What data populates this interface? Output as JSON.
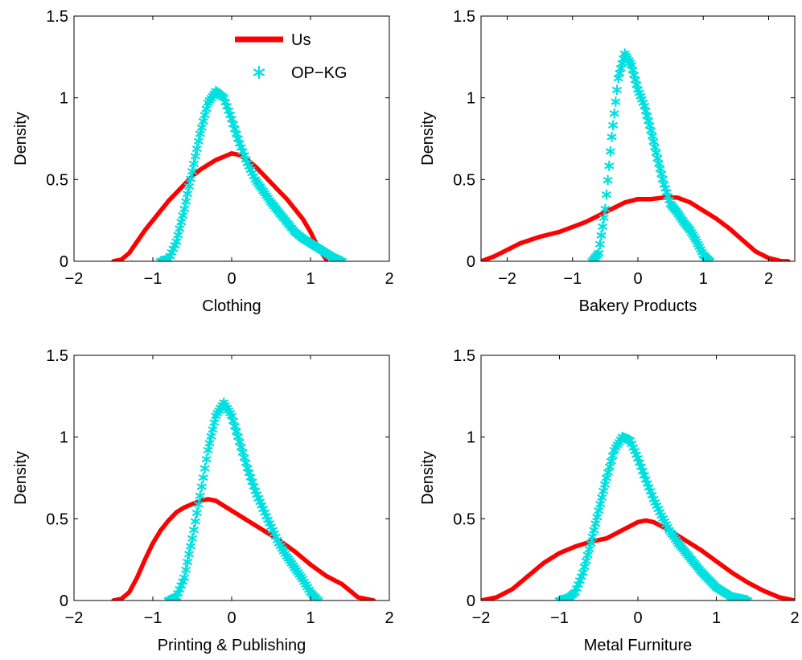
{
  "chart_data": [
    {
      "type": "line",
      "xlabel": "Clothing",
      "ylabel": "Density",
      "xlim": [
        -2,
        2
      ],
      "ylim": [
        0,
        1.5
      ],
      "xticks": [
        "−2",
        "−1",
        "0",
        "1",
        "2"
      ],
      "yticks": [
        "0",
        "0.5",
        "1",
        "1.5"
      ],
      "legend": {
        "show": true,
        "position": "top-right"
      },
      "series": [
        {
          "name": "Us",
          "color": "#ff0000",
          "style": "line",
          "x": [
            -1.5,
            -1.4,
            -1.3,
            -1.2,
            -1.1,
            -1.0,
            -0.9,
            -0.8,
            -0.7,
            -0.6,
            -0.5,
            -0.4,
            -0.3,
            -0.2,
            -0.1,
            0.0,
            0.1,
            0.2,
            0.3,
            0.4,
            0.5,
            0.6,
            0.7,
            0.8,
            0.9,
            1.0,
            1.1,
            1.2
          ],
          "y": [
            0,
            0.01,
            0.05,
            0.12,
            0.19,
            0.25,
            0.31,
            0.37,
            0.42,
            0.47,
            0.52,
            0.56,
            0.59,
            0.62,
            0.64,
            0.66,
            0.65,
            0.62,
            0.58,
            0.53,
            0.48,
            0.43,
            0.38,
            0.32,
            0.26,
            0.18,
            0.08,
            0.01
          ]
        },
        {
          "name": "OP−KG",
          "color": "#00e0e0",
          "style": "markers",
          "x": [
            -0.9,
            -0.8,
            -0.7,
            -0.6,
            -0.5,
            -0.4,
            -0.3,
            -0.2,
            -0.1,
            0.0,
            0.1,
            0.2,
            0.3,
            0.4,
            0.5,
            0.6,
            0.7,
            0.8,
            0.9,
            1.0,
            1.1,
            1.2,
            1.3,
            1.4
          ],
          "y": [
            0,
            0.01,
            0.12,
            0.32,
            0.55,
            0.78,
            0.97,
            1.04,
            1.0,
            0.87,
            0.72,
            0.6,
            0.5,
            0.43,
            0.36,
            0.3,
            0.24,
            0.18,
            0.14,
            0.11,
            0.08,
            0.05,
            0.02,
            0.0
          ]
        }
      ]
    },
    {
      "type": "line",
      "xlabel": "Bakery Products",
      "ylabel": "Density",
      "xlim": [
        -2.4,
        2.4
      ],
      "ylim": [
        0,
        1.5
      ],
      "xticks": [
        "−2",
        "−1",
        "0",
        "1",
        "2"
      ],
      "yticks": [
        "0",
        "0.5",
        "1",
        "1.5"
      ],
      "legend": {
        "show": false
      },
      "series": [
        {
          "name": "Us",
          "color": "#ff0000",
          "style": "line",
          "x": [
            -2.4,
            -2.2,
            -2.0,
            -1.8,
            -1.5,
            -1.2,
            -1.0,
            -0.8,
            -0.6,
            -0.4,
            -0.2,
            0.0,
            0.2,
            0.4,
            0.6,
            0.8,
            1.0,
            1.2,
            1.4,
            1.6,
            1.8,
            2.0,
            2.2,
            2.3
          ],
          "y": [
            0.0,
            0.03,
            0.07,
            0.11,
            0.15,
            0.18,
            0.21,
            0.24,
            0.28,
            0.32,
            0.36,
            0.38,
            0.38,
            0.39,
            0.39,
            0.36,
            0.31,
            0.26,
            0.2,
            0.13,
            0.06,
            0.02,
            0.0,
            0.0
          ]
        },
        {
          "name": "OP−KG",
          "color": "#00e0e0",
          "style": "markers",
          "x": [
            -0.7,
            -0.6,
            -0.5,
            -0.4,
            -0.3,
            -0.2,
            -0.1,
            0.0,
            0.1,
            0.2,
            0.3,
            0.4,
            0.5,
            0.6,
            0.7,
            0.8,
            0.9,
            1.0,
            1.1
          ],
          "y": [
            0,
            0.05,
            0.32,
            0.76,
            1.12,
            1.27,
            1.2,
            1.05,
            0.95,
            0.8,
            0.63,
            0.47,
            0.35,
            0.3,
            0.24,
            0.19,
            0.12,
            0.04,
            0.0
          ]
        }
      ]
    },
    {
      "type": "line",
      "xlabel": "Printing & Publishing",
      "ylabel": "Density",
      "xlim": [
        -2,
        2
      ],
      "ylim": [
        0,
        1.5
      ],
      "xticks": [
        "−2",
        "−1",
        "0",
        "1",
        "2"
      ],
      "yticks": [
        "0",
        "0.5",
        "1",
        "1.5"
      ],
      "legend": {
        "show": false
      },
      "series": [
        {
          "name": "Us",
          "color": "#ff0000",
          "style": "line",
          "x": [
            -1.5,
            -1.4,
            -1.3,
            -1.2,
            -1.1,
            -1.0,
            -0.9,
            -0.8,
            -0.7,
            -0.6,
            -0.5,
            -0.4,
            -0.3,
            -0.2,
            -0.1,
            0.0,
            0.2,
            0.4,
            0.6,
            0.8,
            1.0,
            1.2,
            1.4,
            1.5,
            1.6,
            1.7,
            1.8
          ],
          "y": [
            0,
            0.01,
            0.05,
            0.14,
            0.25,
            0.35,
            0.43,
            0.49,
            0.54,
            0.57,
            0.59,
            0.61,
            0.62,
            0.61,
            0.58,
            0.55,
            0.49,
            0.43,
            0.37,
            0.3,
            0.22,
            0.15,
            0.1,
            0.06,
            0.02,
            0.01,
            0.0
          ]
        },
        {
          "name": "OP−KG",
          "color": "#00e0e0",
          "style": "markers",
          "x": [
            -0.8,
            -0.7,
            -0.6,
            -0.5,
            -0.4,
            -0.3,
            -0.2,
            -0.1,
            0.0,
            0.1,
            0.2,
            0.3,
            0.4,
            0.5,
            0.6,
            0.7,
            0.8,
            0.9,
            1.0,
            1.1
          ],
          "y": [
            0,
            0.02,
            0.14,
            0.38,
            0.64,
            0.92,
            1.13,
            1.21,
            1.13,
            0.97,
            0.81,
            0.67,
            0.56,
            0.45,
            0.35,
            0.27,
            0.2,
            0.13,
            0.05,
            0.0
          ]
        }
      ]
    },
    {
      "type": "line",
      "xlabel": "Metal Furniture",
      "ylabel": "Density",
      "xlim": [
        -2,
        2
      ],
      "ylim": [
        0,
        1.5
      ],
      "xticks": [
        "−2",
        "−1",
        "0",
        "1",
        "2"
      ],
      "yticks": [
        "0",
        "0.5",
        "1",
        "1.5"
      ],
      "legend": {
        "show": false
      },
      "series": [
        {
          "name": "Us",
          "color": "#ff0000",
          "style": "line",
          "x": [
            -2.0,
            -1.8,
            -1.6,
            -1.4,
            -1.2,
            -1.0,
            -0.8,
            -0.6,
            -0.4,
            -0.2,
            0.0,
            0.1,
            0.2,
            0.4,
            0.6,
            0.8,
            1.0,
            1.2,
            1.4,
            1.6,
            1.8,
            2.0
          ],
          "y": [
            0.0,
            0.02,
            0.07,
            0.15,
            0.23,
            0.29,
            0.33,
            0.36,
            0.38,
            0.43,
            0.48,
            0.49,
            0.48,
            0.43,
            0.37,
            0.31,
            0.24,
            0.17,
            0.11,
            0.06,
            0.02,
            0.0
          ]
        },
        {
          "name": "OP−KG",
          "color": "#00e0e0",
          "style": "markers",
          "x": [
            -1.0,
            -0.9,
            -0.8,
            -0.7,
            -0.6,
            -0.5,
            -0.4,
            -0.3,
            -0.2,
            -0.1,
            0.0,
            0.1,
            0.2,
            0.3,
            0.4,
            0.5,
            0.6,
            0.7,
            0.8,
            0.9,
            1.0,
            1.1,
            1.2,
            1.3,
            1.4
          ],
          "y": [
            0,
            0.01,
            0.05,
            0.17,
            0.35,
            0.55,
            0.75,
            0.92,
            1.0,
            0.98,
            0.87,
            0.74,
            0.62,
            0.52,
            0.43,
            0.36,
            0.3,
            0.24,
            0.18,
            0.13,
            0.08,
            0.05,
            0.02,
            0.01,
            0.0
          ]
        }
      ]
    }
  ]
}
